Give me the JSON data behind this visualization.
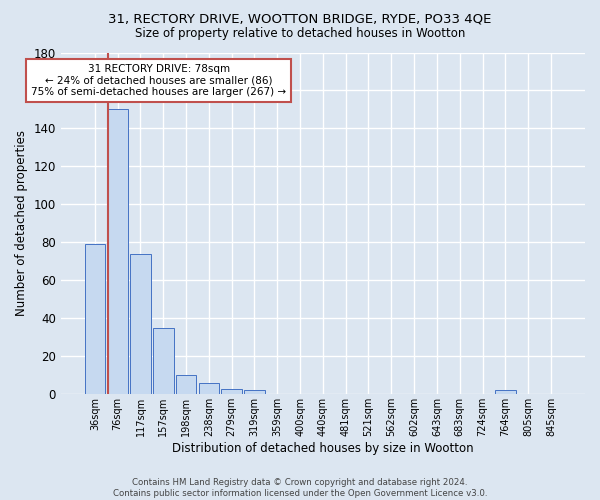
{
  "title1": "31, RECTORY DRIVE, WOOTTON BRIDGE, RYDE, PO33 4QE",
  "title2": "Size of property relative to detached houses in Wootton",
  "xlabel": "Distribution of detached houses by size in Wootton",
  "ylabel": "Number of detached properties",
  "footnote1": "Contains HM Land Registry data © Crown copyright and database right 2024.",
  "footnote2": "Contains public sector information licensed under the Open Government Licence v3.0.",
  "bin_labels": [
    "36sqm",
    "76sqm",
    "117sqm",
    "157sqm",
    "198sqm",
    "238sqm",
    "279sqm",
    "319sqm",
    "359sqm",
    "400sqm",
    "440sqm",
    "481sqm",
    "521sqm",
    "562sqm",
    "602sqm",
    "643sqm",
    "683sqm",
    "724sqm",
    "764sqm",
    "805sqm",
    "845sqm"
  ],
  "bar_values": [
    79,
    150,
    74,
    35,
    10,
    6,
    3,
    2,
    0,
    0,
    0,
    0,
    0,
    0,
    0,
    0,
    0,
    0,
    2,
    0,
    0
  ],
  "bar_color": "#c6d9f0",
  "bar_edge_color": "#4472c4",
  "bg_color": "#dce6f1",
  "grid_color": "white",
  "subject_line_color": "#c0504d",
  "annotation_text": "31 RECTORY DRIVE: 78sqm\n← 24% of detached houses are smaller (86)\n75% of semi-detached houses are larger (267) →",
  "annotation_box_color": "white",
  "annotation_box_edge": "#c0504d",
  "ylim": [
    0,
    180
  ],
  "yticks": [
    0,
    20,
    40,
    60,
    80,
    100,
    120,
    140,
    160,
    180
  ]
}
